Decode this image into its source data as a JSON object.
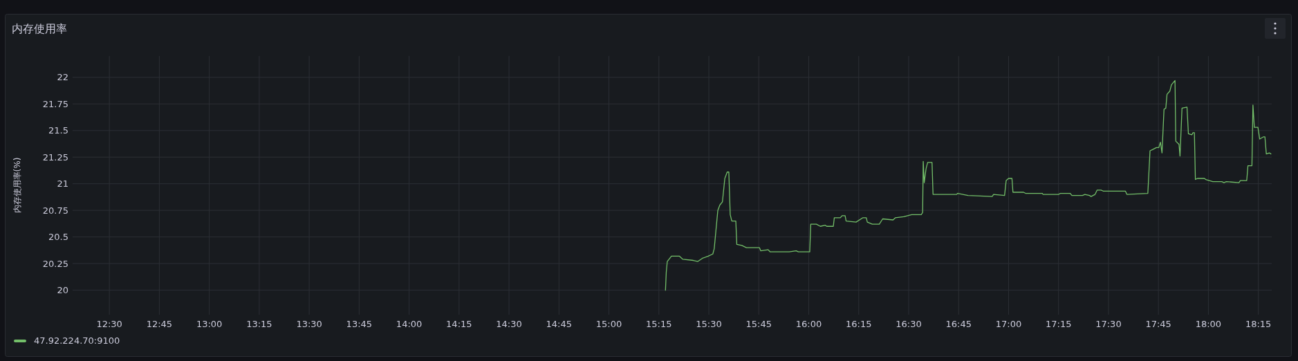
{
  "chart_data": {
    "type": "line",
    "title": "内存使用率",
    "ylabel": "内存使用率(%)",
    "x": [
      15.283,
      15.287,
      15.292,
      15.313,
      15.352,
      15.37,
      15.422,
      15.445,
      15.468,
      15.497,
      15.52,
      15.527,
      15.533,
      15.545,
      15.555,
      15.568,
      15.58,
      15.592,
      15.6,
      15.607,
      15.615,
      15.635,
      15.64,
      15.665,
      15.688,
      15.753,
      15.76,
      15.797,
      15.807,
      15.902,
      15.937,
      15.948,
      16.005,
      16.01,
      16.038,
      16.058,
      16.083,
      16.09,
      16.123,
      16.128,
      16.158,
      16.167,
      16.182,
      16.187,
      16.237,
      16.27,
      16.288,
      16.293,
      16.318,
      16.353,
      16.37,
      16.422,
      16.433,
      16.475,
      16.515,
      16.563,
      16.57,
      16.573,
      16.578,
      16.587,
      16.595,
      16.617,
      16.622,
      16.74,
      16.745,
      16.797,
      16.918,
      16.925,
      16.98,
      16.988,
      17.0,
      17.017,
      17.022,
      17.075,
      17.085,
      17.168,
      17.173,
      17.25,
      17.26,
      17.308,
      17.317,
      17.37,
      17.382,
      17.405,
      17.413,
      17.433,
      17.443,
      17.463,
      17.475,
      17.585,
      17.592,
      17.697,
      17.708,
      17.72,
      17.74,
      17.752,
      17.76,
      17.768,
      17.778,
      17.787,
      17.793,
      17.807,
      17.815,
      17.833,
      17.837,
      17.853,
      17.858,
      17.868,
      17.893,
      17.9,
      17.917,
      17.923,
      17.93,
      17.935,
      17.945,
      17.98,
      17.987,
      18.022,
      18.067,
      18.078,
      18.09,
      18.153,
      18.16,
      18.192,
      18.198,
      18.218,
      18.223,
      18.23,
      18.248,
      18.257,
      18.275,
      18.283,
      18.29,
      18.305,
      18.313
    ],
    "series": [
      {
        "name": "47.92.224.70:9100",
        "color": "#73bf69",
        "values": [
          20.0,
          20.17,
          20.27,
          20.32,
          20.32,
          20.29,
          20.28,
          20.27,
          20.3,
          20.32,
          20.34,
          20.39,
          20.51,
          20.75,
          20.8,
          20.83,
          21.05,
          21.11,
          21.11,
          20.71,
          20.65,
          20.65,
          20.43,
          20.42,
          20.4,
          20.4,
          20.37,
          20.38,
          20.36,
          20.36,
          20.37,
          20.36,
          20.36,
          20.62,
          20.62,
          20.6,
          20.61,
          20.6,
          20.6,
          20.68,
          20.68,
          20.7,
          20.7,
          20.65,
          20.64,
          20.68,
          20.68,
          20.64,
          20.62,
          20.62,
          20.67,
          20.66,
          20.68,
          20.69,
          20.71,
          20.71,
          20.73,
          21.21,
          21.01,
          21.14,
          21.2,
          21.2,
          20.9,
          20.9,
          20.91,
          20.89,
          20.88,
          20.9,
          20.89,
          21.03,
          21.05,
          21.05,
          20.92,
          20.92,
          20.91,
          20.91,
          20.9,
          20.9,
          20.91,
          20.91,
          20.89,
          20.89,
          20.9,
          20.89,
          20.88,
          20.9,
          20.94,
          20.94,
          20.93,
          20.93,
          20.9,
          20.91,
          21.31,
          21.32,
          21.34,
          21.34,
          21.39,
          21.29,
          21.7,
          21.71,
          21.84,
          21.87,
          21.93,
          21.97,
          21.4,
          21.37,
          21.26,
          21.71,
          21.72,
          21.47,
          21.46,
          21.48,
          21.48,
          21.04,
          21.05,
          21.05,
          21.04,
          21.02,
          21.02,
          21.01,
          21.02,
          21.01,
          21.03,
          21.03,
          21.17,
          21.17,
          21.74,
          21.53,
          21.53,
          21.42,
          21.44,
          21.44,
          21.28,
          21.29,
          21.28
        ]
      }
    ],
    "xlim": [
      12.316,
      18.317
    ],
    "ylim": [
      19.77,
      22.2
    ],
    "xticks": [
      {
        "value": 12.5,
        "label": "12:30"
      },
      {
        "value": 12.75,
        "label": "12:45"
      },
      {
        "value": 13,
        "label": "13:00"
      },
      {
        "value": 13.25,
        "label": "13:15"
      },
      {
        "value": 13.5,
        "label": "13:30"
      },
      {
        "value": 13.75,
        "label": "13:45"
      },
      {
        "value": 14,
        "label": "14:00"
      },
      {
        "value": 14.25,
        "label": "14:15"
      },
      {
        "value": 14.5,
        "label": "14:30"
      },
      {
        "value": 14.75,
        "label": "14:45"
      },
      {
        "value": 15,
        "label": "15:00"
      },
      {
        "value": 15.25,
        "label": "15:15"
      },
      {
        "value": 15.5,
        "label": "15:30"
      },
      {
        "value": 15.75,
        "label": "15:45"
      },
      {
        "value": 16,
        "label": "16:00"
      },
      {
        "value": 16.25,
        "label": "16:15"
      },
      {
        "value": 16.5,
        "label": "16:30"
      },
      {
        "value": 16.75,
        "label": "16:45"
      },
      {
        "value": 17,
        "label": "17:00"
      },
      {
        "value": 17.25,
        "label": "17:15"
      },
      {
        "value": 17.5,
        "label": "17:30"
      },
      {
        "value": 17.75,
        "label": "17:45"
      },
      {
        "value": 18,
        "label": "18:00"
      },
      {
        "value": 18.25,
        "label": "18:15"
      }
    ],
    "yticks": [
      20,
      20.25,
      20.5,
      20.75,
      21,
      21.25,
      21.5,
      21.75,
      22
    ],
    "grid": true,
    "legend": "bottom left",
    "line_style": "solid"
  }
}
